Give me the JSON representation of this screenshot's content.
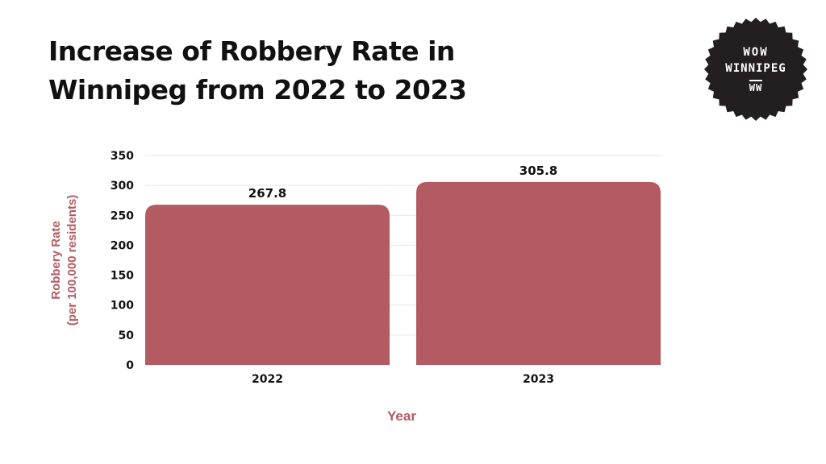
{
  "title_lines": [
    "Increase of Robbery Rate in",
    "Winnipeg from 2022 to 2023"
  ],
  "logo": {
    "line1": "WOW",
    "line2": "WINNIPEG",
    "line3": "WW"
  },
  "colors": {
    "bar": "#b35a63",
    "axis_label": "#b35a63",
    "badge": "#231f20",
    "grid": "#e6e6e6"
  },
  "chart_data": {
    "type": "bar",
    "title": "Increase of Robbery Rate in Winnipeg from 2022 to 2023",
    "categories": [
      "2022",
      "2023"
    ],
    "values": [
      267.8,
      305.8
    ],
    "data_labels": [
      "267.8",
      "305.8"
    ],
    "xlabel": "Year",
    "ylabel_lines": [
      "Robbery Rate",
      "(per 100,000 residents)"
    ],
    "ylim": [
      0,
      350
    ],
    "yticks": [
      0,
      50,
      100,
      150,
      200,
      250,
      300,
      350
    ],
    "grid": true,
    "legend": "none"
  }
}
